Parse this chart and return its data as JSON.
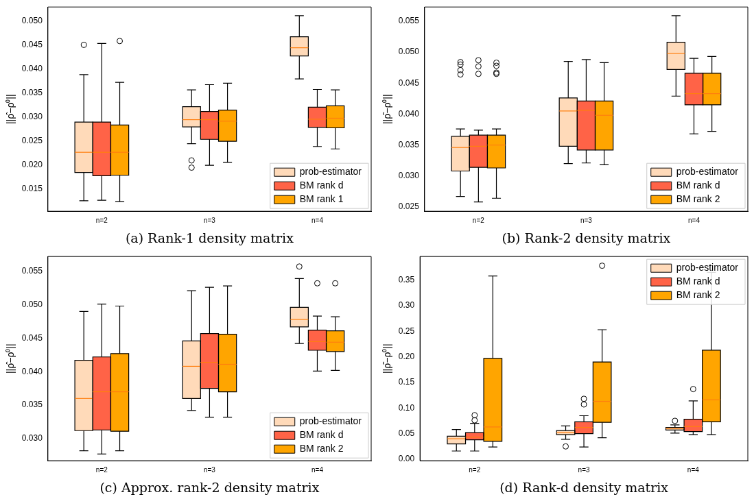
{
  "chart_data": [
    {
      "type": "box",
      "xlabel": "(a) Rank-1 density matrix",
      "ylabel": "||ρ̂−ρ⁰||",
      "categories": [
        "n=2",
        "n=3",
        "n=4"
      ],
      "ylim": [
        0.0103,
        0.0529
      ],
      "yticks": [
        {
          "value": 0.015,
          "label": "0.015"
        },
        {
          "value": 0.02,
          "label": "0.020"
        },
        {
          "value": 0.025,
          "label": "0.025"
        },
        {
          "value": 0.03,
          "label": "0.030"
        },
        {
          "value": 0.035,
          "label": "0.035"
        },
        {
          "value": 0.04,
          "label": "0.040"
        },
        {
          "value": 0.045,
          "label": "0.045"
        },
        {
          "value": 0.05,
          "label": "0.050"
        }
      ],
      "legend": "bottom right",
      "grid": false,
      "series": [
        {
          "name": "prob-estimator",
          "color": "#ffdab9",
          "boxes": [
            {
              "low": 0.0125,
              "q1": 0.0184,
              "median": 0.0226,
              "q3": 0.0289,
              "high": 0.0388,
              "outliers": [
                0.045
              ]
            },
            {
              "low": 0.0244,
              "q1": 0.0279,
              "median": 0.0294,
              "q3": 0.0321,
              "high": 0.0356,
              "outliers": [
                0.0209,
                0.0194
              ]
            },
            {
              "low": 0.0379,
              "q1": 0.0427,
              "median": 0.0444,
              "q3": 0.0467,
              "high": 0.0511
            }
          ]
        },
        {
          "name": "BM rank d",
          "color": "#ff6347",
          "boxes": [
            {
              "low": 0.0126,
              "q1": 0.0177,
              "median": 0.0226,
              "q3": 0.0289,
              "high": 0.0453
            },
            {
              "low": 0.0199,
              "q1": 0.0253,
              "median": 0.0294,
              "q3": 0.0311,
              "high": 0.0367
            },
            {
              "low": 0.0238,
              "q1": 0.0278,
              "median": 0.0295,
              "q3": 0.032,
              "high": 0.0357
            }
          ]
        },
        {
          "name": "BM rank 1",
          "color": "#ffa500",
          "boxes": [
            {
              "low": 0.0123,
              "q1": 0.0178,
              "median": 0.0226,
              "q3": 0.0283,
              "high": 0.0372,
              "outliers": [
                0.0458
              ]
            },
            {
              "low": 0.0205,
              "q1": 0.0249,
              "median": 0.0291,
              "q3": 0.0314,
              "high": 0.037
            },
            {
              "low": 0.0233,
              "q1": 0.0277,
              "median": 0.0297,
              "q3": 0.0323,
              "high": 0.0356
            }
          ]
        }
      ]
    },
    {
      "type": "box",
      "xlabel": "(b) Rank-2 density matrix",
      "ylabel": "||ρ̂−ρ⁰||",
      "categories": [
        "n=2",
        "n=3",
        "n=4"
      ],
      "ylim": [
        0.0243,
        0.0573
      ],
      "yticks": [
        {
          "value": 0.025,
          "label": "0.025"
        },
        {
          "value": 0.03,
          "label": "0.030"
        },
        {
          "value": 0.035,
          "label": "0.035"
        },
        {
          "value": 0.04,
          "label": "0.040"
        },
        {
          "value": 0.045,
          "label": "0.045"
        },
        {
          "value": 0.05,
          "label": "0.050"
        },
        {
          "value": 0.055,
          "label": "0.055"
        }
      ],
      "legend": "bottom right",
      "grid": false,
      "series": [
        {
          "name": "prob-estimator",
          "color": "#ffdab9",
          "boxes": [
            {
              "low": 0.0267,
              "q1": 0.0308,
              "median": 0.0346,
              "q3": 0.0364,
              "high": 0.0376,
              "outliers": [
                0.0484,
                0.048,
                0.0471,
                0.0464
              ]
            },
            {
              "low": 0.032,
              "q1": 0.0348,
              "median": 0.0405,
              "q3": 0.0426,
              "high": 0.0485
            },
            {
              "low": 0.0429,
              "q1": 0.0472,
              "median": 0.0498,
              "q3": 0.0516,
              "high": 0.0559
            }
          ]
        },
        {
          "name": "BM rank d",
          "color": "#ff6347",
          "boxes": [
            {
              "low": 0.0258,
              "q1": 0.0314,
              "median": 0.0348,
              "q3": 0.0366,
              "high": 0.0374,
              "outliers": [
                0.0487,
                0.0477,
                0.0465
              ]
            },
            {
              "low": 0.0321,
              "q1": 0.0342,
              "median": 0.0406,
              "q3": 0.0421,
              "high": 0.0488
            },
            {
              "low": 0.0368,
              "q1": 0.0415,
              "median": 0.0433,
              "q3": 0.0466,
              "high": 0.049
            }
          ]
        },
        {
          "name": "BM rank 2",
          "color": "#ffa500",
          "boxes": [
            {
              "low": 0.0264,
              "q1": 0.0313,
              "median": 0.035,
              "q3": 0.0366,
              "high": 0.0376,
              "outliers": [
                0.0483,
                0.0478,
                0.0467,
                0.0465
              ]
            },
            {
              "low": 0.0318,
              "q1": 0.0342,
              "median": 0.0398,
              "q3": 0.0421,
              "high": 0.0483
            },
            {
              "low": 0.0372,
              "q1": 0.0415,
              "median": 0.0433,
              "q3": 0.0466,
              "high": 0.0493
            }
          ]
        }
      ]
    },
    {
      "type": "box",
      "xlabel": "(c) Approx. rank-2 density matrix",
      "ylabel": "||ρ̂−ρ⁰||",
      "categories": [
        "n=2",
        "n=3",
        "n=4"
      ],
      "ylim": [
        0.0267,
        0.0572
      ],
      "yticks": [
        {
          "value": 0.03,
          "label": "0.030"
        },
        {
          "value": 0.035,
          "label": "0.035"
        },
        {
          "value": 0.04,
          "label": "0.040"
        },
        {
          "value": 0.045,
          "label": "0.045"
        },
        {
          "value": 0.05,
          "label": "0.050"
        },
        {
          "value": 0.055,
          "label": "0.055"
        }
      ],
      "legend": "bottom right",
      "grid": false,
      "series": [
        {
          "name": "prob-estimator",
          "color": "#ffdab9",
          "boxes": [
            {
              "low": 0.0282,
              "q1": 0.0312,
              "median": 0.036,
              "q3": 0.0417,
              "high": 0.049
            },
            {
              "low": 0.0342,
              "q1": 0.036,
              "median": 0.0408,
              "q3": 0.0446,
              "high": 0.0521
            },
            {
              "low": 0.0442,
              "q1": 0.0467,
              "median": 0.0478,
              "q3": 0.0496,
              "high": 0.0539,
              "outliers": [
                0.0557
              ]
            }
          ]
        },
        {
          "name": "BM rank d",
          "color": "#ff6347",
          "boxes": [
            {
              "low": 0.0277,
              "q1": 0.0313,
              "median": 0.037,
              "q3": 0.0422,
              "high": 0.0501
            },
            {
              "low": 0.0332,
              "q1": 0.0375,
              "median": 0.0414,
              "q3": 0.0457,
              "high": 0.0526
            },
            {
              "low": 0.0401,
              "q1": 0.0432,
              "median": 0.0445,
              "q3": 0.0462,
              "high": 0.0483,
              "outliers": [
                0.0532
              ]
            }
          ]
        },
        {
          "name": "BM rank 2",
          "color": "#ffa500",
          "boxes": [
            {
              "low": 0.0282,
              "q1": 0.0311,
              "median": 0.037,
              "q3": 0.0427,
              "high": 0.0498
            },
            {
              "low": 0.0332,
              "q1": 0.037,
              "median": 0.0411,
              "q3": 0.0456,
              "high": 0.0528
            },
            {
              "low": 0.0402,
              "q1": 0.043,
              "median": 0.0444,
              "q3": 0.0461,
              "high": 0.0482,
              "outliers": [
                0.0532
              ]
            }
          ]
        }
      ]
    },
    {
      "type": "box",
      "xlabel": "(d) Rank-d density matrix",
      "ylabel": "||ρ̂−ρ⁰||",
      "categories": [
        "n=2",
        "n=3",
        "n=4"
      ],
      "ylim": [
        -0.003,
        0.396
      ],
      "yticks": [
        {
          "value": 0,
          "label": "0.00"
        },
        {
          "value": 0.05,
          "label": "0.05"
        },
        {
          "value": 0.1,
          "label": "0.10"
        },
        {
          "value": 0.15,
          "label": "0.15"
        },
        {
          "value": 0.2,
          "label": "0.20"
        },
        {
          "value": 0.25,
          "label": "0.25"
        },
        {
          "value": 0.3,
          "label": "0.30"
        },
        {
          "value": 0.35,
          "label": "0.35"
        }
      ],
      "legend": "top right",
      "grid": false,
      "series": [
        {
          "name": "prob-estimator",
          "color": "#ffdab9",
          "boxes": [
            {
              "low": 0.016,
              "q1": 0.03,
              "median": 0.04,
              "q3": 0.045,
              "high": 0.058
            },
            {
              "low": 0.039,
              "q1": 0.048,
              "median": 0.052,
              "q3": 0.056,
              "high": 0.065,
              "outliers": [
                0.025
              ]
            },
            {
              "low": 0.051,
              "q1": 0.057,
              "median": 0.06,
              "q3": 0.062,
              "high": 0.067,
              "outliers": [
                0.075
              ]
            }
          ]
        },
        {
          "name": "BM rank d",
          "color": "#ff6347",
          "boxes": [
            {
              "low": 0.016,
              "q1": 0.038,
              "median": 0.043,
              "q3": 0.052,
              "high": 0.07,
              "outliers": [
                0.086,
                0.076
              ]
            },
            {
              "low": 0.024,
              "q1": 0.05,
              "median": 0.062,
              "q3": 0.073,
              "high": 0.085,
              "outliers": [
                0.118,
                0.107
              ]
            },
            {
              "low": 0.048,
              "q1": 0.054,
              "median": 0.064,
              "q3": 0.078,
              "high": 0.114,
              "outliers": [
                0.137
              ]
            }
          ]
        },
        {
          "name": "BM rank 2",
          "color": "#ffa500",
          "boxes": [
            {
              "low": 0.024,
              "q1": 0.035,
              "median": 0.063,
              "q3": 0.197,
              "high": 0.358
            },
            {
              "low": 0.042,
              "q1": 0.072,
              "median": 0.113,
              "q3": 0.19,
              "high": 0.253,
              "outliers": [
                0.378
              ]
            },
            {
              "low": 0.048,
              "q1": 0.073,
              "median": 0.116,
              "q3": 0.213,
              "high": 0.365
            }
          ]
        }
      ]
    }
  ]
}
